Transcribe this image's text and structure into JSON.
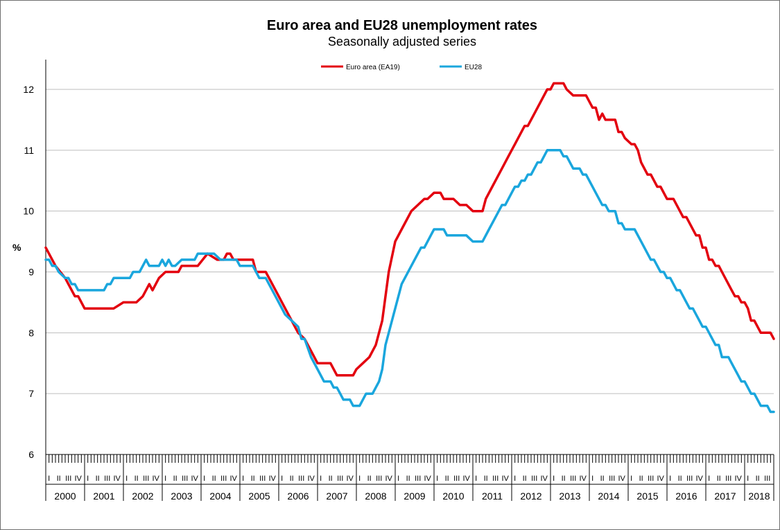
{
  "chart_data": {
    "type": "line",
    "title": "Euro area and EU28 unemployment rates",
    "subtitle": "Seasonally adjusted series",
    "ylabel": "%",
    "ylim": [
      6,
      12.5
    ],
    "y_ticks": [
      "6",
      "7",
      "8",
      "9",
      "10",
      "11",
      "12"
    ],
    "grid": "horizontal",
    "legend_position": "top",
    "x_years": [
      "2000",
      "2001",
      "2002",
      "2003",
      "2004",
      "2005",
      "2006",
      "2007",
      "2008",
      "2009",
      "2010",
      "2011",
      "2012",
      "2013",
      "2014",
      "2015",
      "2016",
      "2017",
      "2018"
    ],
    "quarter_labels": [
      "I",
      "II",
      "III",
      "IV"
    ],
    "x_start": "2000-01",
    "x_end": "2018-10",
    "series": [
      {
        "name": "Euro area (EA19)",
        "color": "#e3000f",
        "points": [
          [
            "2000-01",
            9.4
          ],
          [
            "2000-04",
            9.1
          ],
          [
            "2000-07",
            8.9
          ],
          [
            "2000-10",
            8.6
          ],
          [
            "2000-11",
            8.6
          ],
          [
            "2001-01",
            8.4
          ],
          [
            "2001-10",
            8.4
          ],
          [
            "2002-01",
            8.5
          ],
          [
            "2002-05",
            8.5
          ],
          [
            "2002-07",
            8.6
          ],
          [
            "2002-09",
            8.8
          ],
          [
            "2002-10",
            8.7
          ],
          [
            "2002-12",
            8.9
          ],
          [
            "2003-02",
            9.0
          ],
          [
            "2003-06",
            9.0
          ],
          [
            "2003-07",
            9.1
          ],
          [
            "2003-12",
            9.1
          ],
          [
            "2004-03",
            9.3
          ],
          [
            "2004-06",
            9.2
          ],
          [
            "2004-08",
            9.2
          ],
          [
            "2004-09",
            9.3
          ],
          [
            "2004-10",
            9.3
          ],
          [
            "2004-11",
            9.2
          ],
          [
            "2005-05",
            9.2
          ],
          [
            "2005-06",
            9.0
          ],
          [
            "2005-09",
            9.0
          ],
          [
            "2005-11",
            8.8
          ],
          [
            "2006-01",
            8.6
          ],
          [
            "2006-03",
            8.4
          ],
          [
            "2006-05",
            8.2
          ],
          [
            "2006-07",
            8.0
          ],
          [
            "2006-09",
            7.9
          ],
          [
            "2006-11",
            7.7
          ],
          [
            "2007-01",
            7.5
          ],
          [
            "2007-05",
            7.5
          ],
          [
            "2007-07",
            7.3
          ],
          [
            "2007-12",
            7.3
          ],
          [
            "2008-01",
            7.4
          ],
          [
            "2008-03",
            7.5
          ],
          [
            "2008-05",
            7.6
          ],
          [
            "2008-07",
            7.8
          ],
          [
            "2008-09",
            8.2
          ],
          [
            "2008-10",
            8.6
          ],
          [
            "2008-11",
            9.0
          ],
          [
            "2009-01",
            9.5
          ],
          [
            "2009-03",
            9.7
          ],
          [
            "2009-06",
            10.0
          ],
          [
            "2009-08",
            10.1
          ],
          [
            "2009-10",
            10.2
          ],
          [
            "2009-11",
            10.2
          ],
          [
            "2010-01",
            10.3
          ],
          [
            "2010-03",
            10.3
          ],
          [
            "2010-04",
            10.2
          ],
          [
            "2010-07",
            10.2
          ],
          [
            "2010-09",
            10.1
          ],
          [
            "2010-11",
            10.1
          ],
          [
            "2011-01",
            10.0
          ],
          [
            "2011-04",
            10.0
          ],
          [
            "2011-05",
            10.2
          ],
          [
            "2011-07",
            10.4
          ],
          [
            "2011-10",
            10.7
          ],
          [
            "2011-12",
            10.9
          ],
          [
            "2012-02",
            11.1
          ],
          [
            "2012-05",
            11.4
          ],
          [
            "2012-06",
            11.4
          ],
          [
            "2012-08",
            11.6
          ],
          [
            "2012-10",
            11.8
          ],
          [
            "2012-12",
            12.0
          ],
          [
            "2013-01",
            12.0
          ],
          [
            "2013-02",
            12.1
          ],
          [
            "2013-05",
            12.1
          ],
          [
            "2013-06",
            12.0
          ],
          [
            "2013-08",
            11.9
          ],
          [
            "2013-12",
            11.9
          ],
          [
            "2014-02",
            11.7
          ],
          [
            "2014-03",
            11.7
          ],
          [
            "2014-04",
            11.5
          ],
          [
            "2014-05",
            11.6
          ],
          [
            "2014-06",
            11.5
          ],
          [
            "2014-09",
            11.5
          ],
          [
            "2014-10",
            11.3
          ],
          [
            "2014-11",
            11.3
          ],
          [
            "2014-12",
            11.2
          ],
          [
            "2015-02",
            11.1
          ],
          [
            "2015-03",
            11.1
          ],
          [
            "2015-04",
            11.0
          ],
          [
            "2015-05",
            10.8
          ],
          [
            "2015-07",
            10.6
          ],
          [
            "2015-08",
            10.6
          ],
          [
            "2015-10",
            10.4
          ],
          [
            "2015-11",
            10.4
          ],
          [
            "2016-01",
            10.2
          ],
          [
            "2016-03",
            10.2
          ],
          [
            "2016-06",
            9.9
          ],
          [
            "2016-07",
            9.9
          ],
          [
            "2016-10",
            9.6
          ],
          [
            "2016-11",
            9.6
          ],
          [
            "2016-12",
            9.4
          ],
          [
            "2017-01",
            9.4
          ],
          [
            "2017-02",
            9.2
          ],
          [
            "2017-03",
            9.2
          ],
          [
            "2017-04",
            9.1
          ],
          [
            "2017-05",
            9.1
          ],
          [
            "2017-06",
            9.0
          ],
          [
            "2017-09",
            8.7
          ],
          [
            "2017-10",
            8.6
          ],
          [
            "2017-11",
            8.6
          ],
          [
            "2017-12",
            8.5
          ],
          [
            "2018-01",
            8.5
          ],
          [
            "2018-02",
            8.4
          ],
          [
            "2018-03",
            8.2
          ],
          [
            "2018-04",
            8.2
          ],
          [
            "2018-06",
            8.0
          ],
          [
            "2018-09",
            8.0
          ],
          [
            "2018-10",
            7.9
          ]
        ]
      },
      {
        "name": "EU28",
        "color": "#1aa6dd",
        "points": [
          [
            "2000-01",
            9.2
          ],
          [
            "2000-02",
            9.2
          ],
          [
            "2000-03",
            9.1
          ],
          [
            "2000-04",
            9.1
          ],
          [
            "2000-05",
            9.0
          ],
          [
            "2000-07",
            8.9
          ],
          [
            "2000-08",
            8.9
          ],
          [
            "2000-09",
            8.8
          ],
          [
            "2000-10",
            8.8
          ],
          [
            "2000-11",
            8.7
          ],
          [
            "2001-07",
            8.7
          ],
          [
            "2001-08",
            8.8
          ],
          [
            "2001-09",
            8.8
          ],
          [
            "2001-10",
            8.9
          ],
          [
            "2002-01",
            8.9
          ],
          [
            "2002-03",
            8.9
          ],
          [
            "2002-04",
            9.0
          ],
          [
            "2002-06",
            9.0
          ],
          [
            "2002-08",
            9.2
          ],
          [
            "2002-09",
            9.1
          ],
          [
            "2002-12",
            9.1
          ],
          [
            "2003-01",
            9.2
          ],
          [
            "2003-02",
            9.1
          ],
          [
            "2003-03",
            9.2
          ],
          [
            "2003-04",
            9.1
          ],
          [
            "2003-05",
            9.1
          ],
          [
            "2003-07",
            9.2
          ],
          [
            "2003-11",
            9.2
          ],
          [
            "2003-12",
            9.3
          ],
          [
            "2004-05",
            9.3
          ],
          [
            "2004-07",
            9.2
          ],
          [
            "2004-12",
            9.2
          ],
          [
            "2005-01",
            9.1
          ],
          [
            "2005-05",
            9.1
          ],
          [
            "2005-07",
            8.9
          ],
          [
            "2005-09",
            8.9
          ],
          [
            "2005-11",
            8.7
          ],
          [
            "2006-01",
            8.5
          ],
          [
            "2006-03",
            8.3
          ],
          [
            "2006-05",
            8.2
          ],
          [
            "2006-07",
            8.1
          ],
          [
            "2006-08",
            7.9
          ],
          [
            "2006-09",
            7.9
          ],
          [
            "2006-11",
            7.6
          ],
          [
            "2007-01",
            7.4
          ],
          [
            "2007-03",
            7.2
          ],
          [
            "2007-05",
            7.2
          ],
          [
            "2007-06",
            7.1
          ],
          [
            "2007-07",
            7.1
          ],
          [
            "2007-08",
            7.0
          ],
          [
            "2007-09",
            6.9
          ],
          [
            "2007-11",
            6.9
          ],
          [
            "2007-12",
            6.8
          ],
          [
            "2008-02",
            6.8
          ],
          [
            "2008-04",
            7.0
          ],
          [
            "2008-06",
            7.0
          ],
          [
            "2008-08",
            7.2
          ],
          [
            "2008-09",
            7.4
          ],
          [
            "2008-10",
            7.8
          ],
          [
            "2008-11",
            8.0
          ],
          [
            "2009-01",
            8.4
          ],
          [
            "2009-03",
            8.8
          ],
          [
            "2009-06",
            9.1
          ],
          [
            "2009-09",
            9.4
          ],
          [
            "2009-10",
            9.4
          ],
          [
            "2009-12",
            9.6
          ],
          [
            "2010-01",
            9.7
          ],
          [
            "2010-04",
            9.7
          ],
          [
            "2010-05",
            9.6
          ],
          [
            "2010-11",
            9.6
          ],
          [
            "2011-01",
            9.5
          ],
          [
            "2011-04",
            9.5
          ],
          [
            "2011-06",
            9.7
          ],
          [
            "2011-08",
            9.9
          ],
          [
            "2011-10",
            10.1
          ],
          [
            "2011-11",
            10.1
          ],
          [
            "2012-01",
            10.3
          ],
          [
            "2012-02",
            10.4
          ],
          [
            "2012-03",
            10.4
          ],
          [
            "2012-04",
            10.5
          ],
          [
            "2012-05",
            10.5
          ],
          [
            "2012-06",
            10.6
          ],
          [
            "2012-07",
            10.6
          ],
          [
            "2012-09",
            10.8
          ],
          [
            "2012-10",
            10.8
          ],
          [
            "2012-12",
            11.0
          ],
          [
            "2013-04",
            11.0
          ],
          [
            "2013-05",
            10.9
          ],
          [
            "2013-06",
            10.9
          ],
          [
            "2013-08",
            10.7
          ],
          [
            "2013-10",
            10.7
          ],
          [
            "2013-11",
            10.6
          ],
          [
            "2013-12",
            10.6
          ],
          [
            "2014-03",
            10.3
          ],
          [
            "2014-05",
            10.1
          ],
          [
            "2014-06",
            10.1
          ],
          [
            "2014-07",
            10.0
          ],
          [
            "2014-09",
            10.0
          ],
          [
            "2014-10",
            9.8
          ],
          [
            "2014-11",
            9.8
          ],
          [
            "2014-12",
            9.7
          ],
          [
            "2015-03",
            9.7
          ],
          [
            "2015-05",
            9.5
          ],
          [
            "2015-07",
            9.3
          ],
          [
            "2015-08",
            9.2
          ],
          [
            "2015-09",
            9.2
          ],
          [
            "2015-11",
            9.0
          ],
          [
            "2015-12",
            9.0
          ],
          [
            "2016-01",
            8.9
          ],
          [
            "2016-02",
            8.9
          ],
          [
            "2016-04",
            8.7
          ],
          [
            "2016-05",
            8.7
          ],
          [
            "2016-07",
            8.5
          ],
          [
            "2016-08",
            8.4
          ],
          [
            "2016-09",
            8.4
          ],
          [
            "2016-11",
            8.2
          ],
          [
            "2016-12",
            8.1
          ],
          [
            "2017-01",
            8.1
          ],
          [
            "2017-04",
            7.8
          ],
          [
            "2017-05",
            7.8
          ],
          [
            "2017-06",
            7.6
          ],
          [
            "2017-08",
            7.6
          ],
          [
            "2017-09",
            7.5
          ],
          [
            "2017-11",
            7.3
          ],
          [
            "2017-12",
            7.2
          ],
          [
            "2018-01",
            7.2
          ],
          [
            "2018-02",
            7.1
          ],
          [
            "2018-03",
            7.0
          ],
          [
            "2018-04",
            7.0
          ],
          [
            "2018-06",
            6.8
          ],
          [
            "2018-08",
            6.8
          ],
          [
            "2018-09",
            6.7
          ],
          [
            "2018-10",
            6.7
          ]
        ]
      }
    ]
  }
}
